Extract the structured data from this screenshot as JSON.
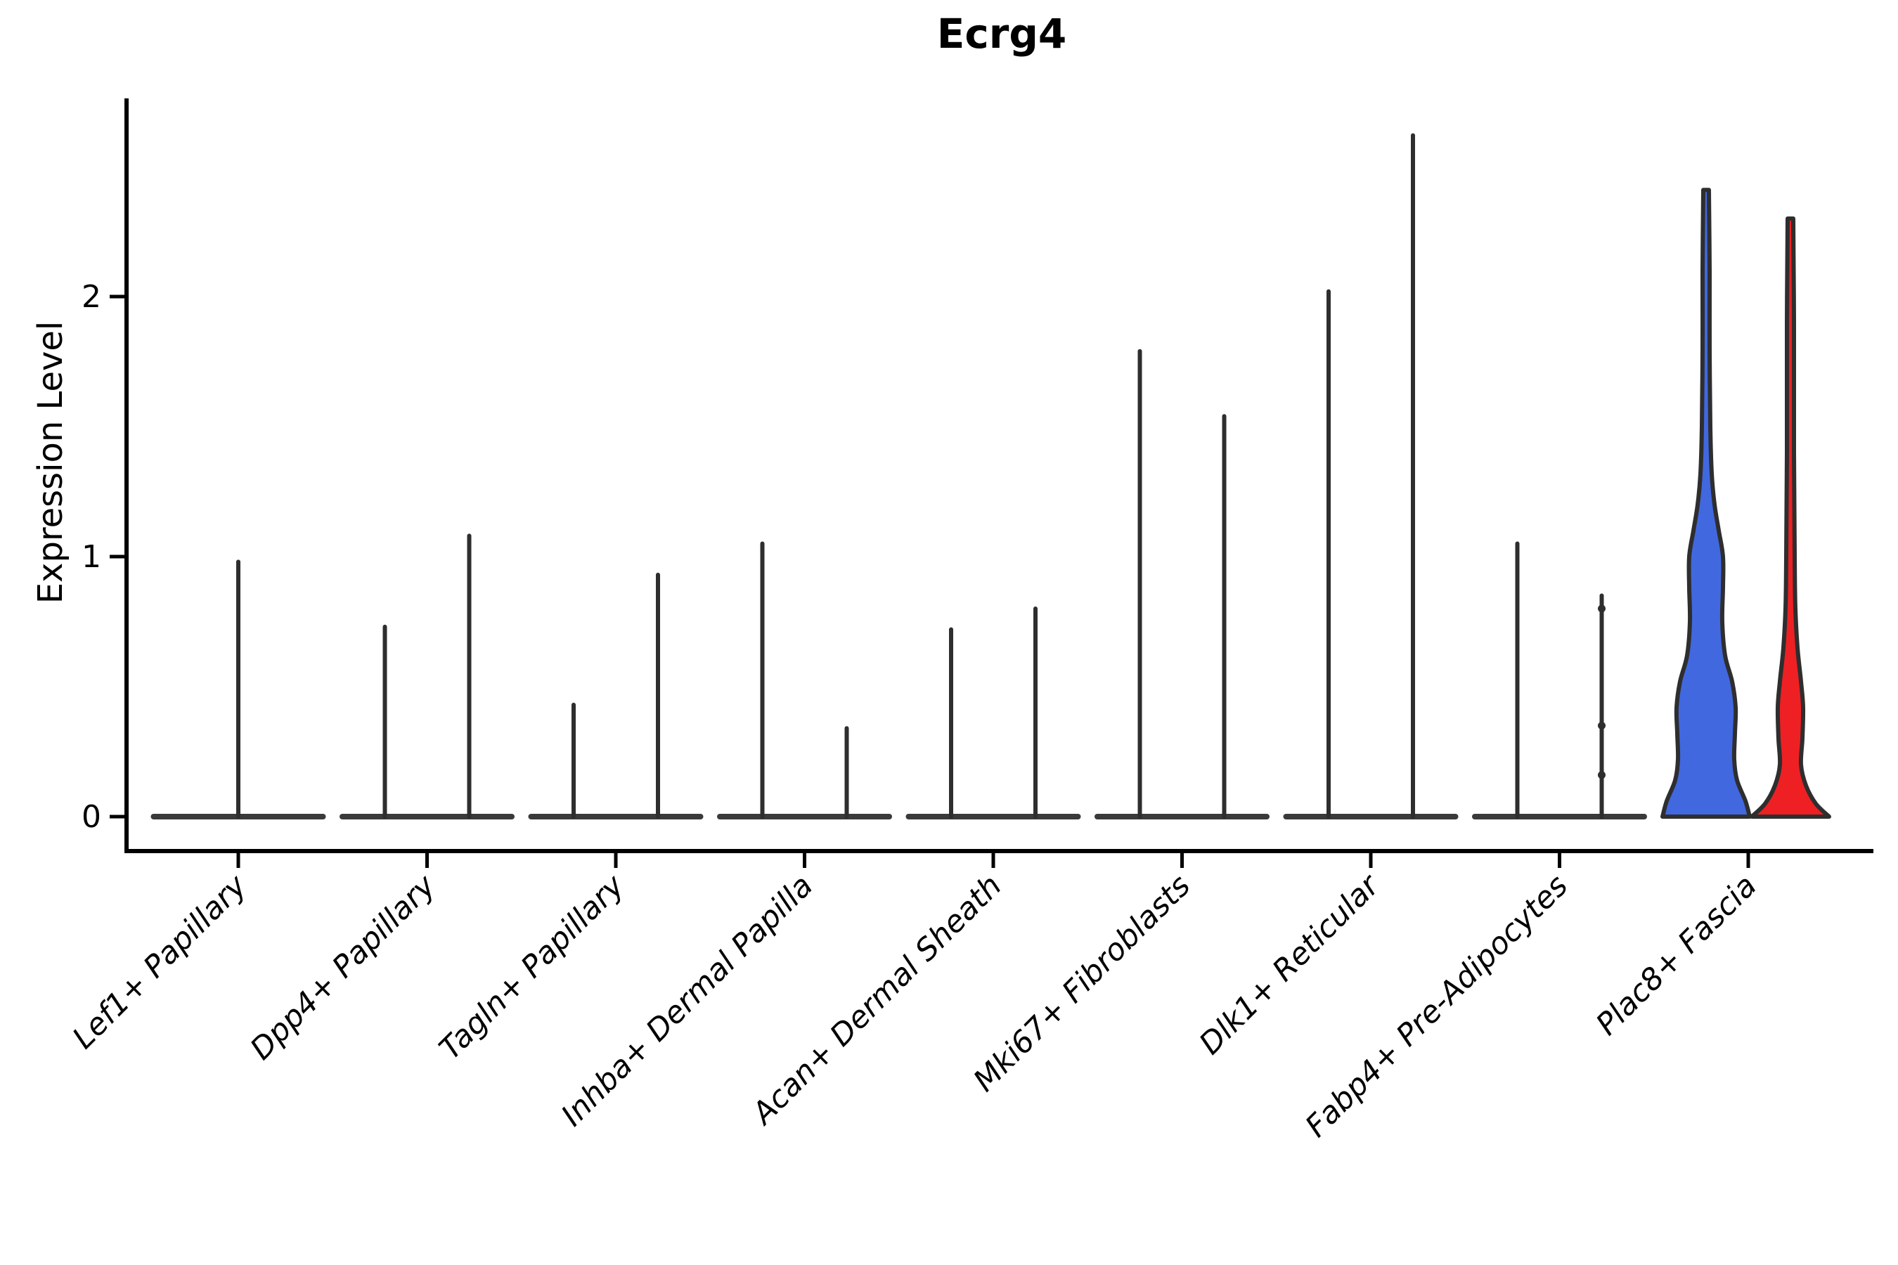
{
  "page": {
    "background": "#ffffff"
  },
  "chart_data": {
    "type": "violin",
    "title": "Ecrg4",
    "ylabel": "Expression Level",
    "xlabel": "",
    "yticks": [
      0,
      1,
      2
    ],
    "ylim": [
      0,
      2.76
    ],
    "grid": false,
    "legend": "none",
    "axis_color": "#000000",
    "violin_line_color": "#2e2e2e",
    "baseline_color": "#3a3a3a",
    "split_colors": {
      "left": "#4168df",
      "right": "#ee2023"
    },
    "categories": [
      "Lef1+ Papillary",
      "Dpp4+ Papillary",
      "Tagln+ Papillary",
      "Inhba+ Dermal Papilla",
      "Acan+ Dermal Sheath",
      "Mki67+ Fibroblasts",
      "Dlk1+ Reticular",
      "Fabp4+ Pre-Adipocytes",
      "Plac8+ Fascia"
    ],
    "series": [
      {
        "category": "Lef1+ Papillary",
        "violins": [
          {
            "group": "center",
            "max_expression": 0.98,
            "collapsed": true
          }
        ]
      },
      {
        "category": "Dpp4+ Papillary",
        "violins": [
          {
            "group": "left",
            "max_expression": 0.73,
            "collapsed": true
          },
          {
            "group": "right",
            "max_expression": 1.08,
            "collapsed": true
          }
        ]
      },
      {
        "category": "Tagln+ Papillary",
        "violins": [
          {
            "group": "left",
            "max_expression": 0.43,
            "collapsed": true
          },
          {
            "group": "right",
            "max_expression": 0.93,
            "collapsed": true
          }
        ]
      },
      {
        "category": "Inhba+ Dermal Papilla",
        "violins": [
          {
            "group": "left",
            "max_expression": 1.05,
            "collapsed": true
          },
          {
            "group": "right",
            "max_expression": 0.34,
            "collapsed": true
          }
        ]
      },
      {
        "category": "Acan+ Dermal Sheath",
        "violins": [
          {
            "group": "left",
            "max_expression": 0.72,
            "collapsed": true
          },
          {
            "group": "right",
            "max_expression": 0.8,
            "collapsed": true
          }
        ]
      },
      {
        "category": "Mki67+ Fibroblasts",
        "violins": [
          {
            "group": "left",
            "max_expression": 1.79,
            "collapsed": true
          },
          {
            "group": "right",
            "max_expression": 1.54,
            "collapsed": true
          }
        ]
      },
      {
        "category": "Dlk1+ Reticular",
        "violins": [
          {
            "group": "left",
            "max_expression": 2.02,
            "collapsed": true
          },
          {
            "group": "right",
            "max_expression": 2.62,
            "collapsed": true
          }
        ]
      },
      {
        "category": "Fabp4+ Pre-Adipocytes",
        "violins": [
          {
            "group": "left",
            "max_expression": 1.05,
            "collapsed": true
          },
          {
            "group": "right",
            "max_expression": 0.85,
            "collapsed": true,
            "nub_values": [
              0.8,
              0.35,
              0.16
            ]
          }
        ]
      },
      {
        "category": "Plac8+ Fascia",
        "violins": [
          {
            "group": "left",
            "max_expression": 2.41,
            "collapsed": false,
            "fill": "#4168df",
            "profile_value_halfwidth": [
              [
                0,
                62
              ],
              [
                0.06,
                56
              ],
              [
                0.14,
                44
              ],
              [
                0.22,
                40
              ],
              [
                0.32,
                41
              ],
              [
                0.42,
                42
              ],
              [
                0.52,
                37
              ],
              [
                0.62,
                27
              ],
              [
                0.75,
                23
              ],
              [
                0.88,
                24
              ],
              [
                1.0,
                24
              ],
              [
                1.1,
                18
              ],
              [
                1.2,
                12
              ],
              [
                1.32,
                8
              ],
              [
                1.5,
                6
              ],
              [
                1.8,
                5
              ],
              [
                2.1,
                5
              ],
              [
                2.41,
                4
              ]
            ]
          },
          {
            "group": "right",
            "max_expression": 2.3,
            "collapsed": false,
            "fill": "#ee2023",
            "profile_value_halfwidth": [
              [
                0,
                55
              ],
              [
                0.05,
                36
              ],
              [
                0.12,
                22
              ],
              [
                0.2,
                15
              ],
              [
                0.3,
                17
              ],
              [
                0.42,
                18
              ],
              [
                0.52,
                15
              ],
              [
                0.65,
                10
              ],
              [
                0.8,
                7
              ],
              [
                1.0,
                6
              ],
              [
                1.4,
                5
              ],
              [
                1.9,
                5
              ],
              [
                2.3,
                4
              ]
            ]
          }
        ]
      }
    ]
  }
}
